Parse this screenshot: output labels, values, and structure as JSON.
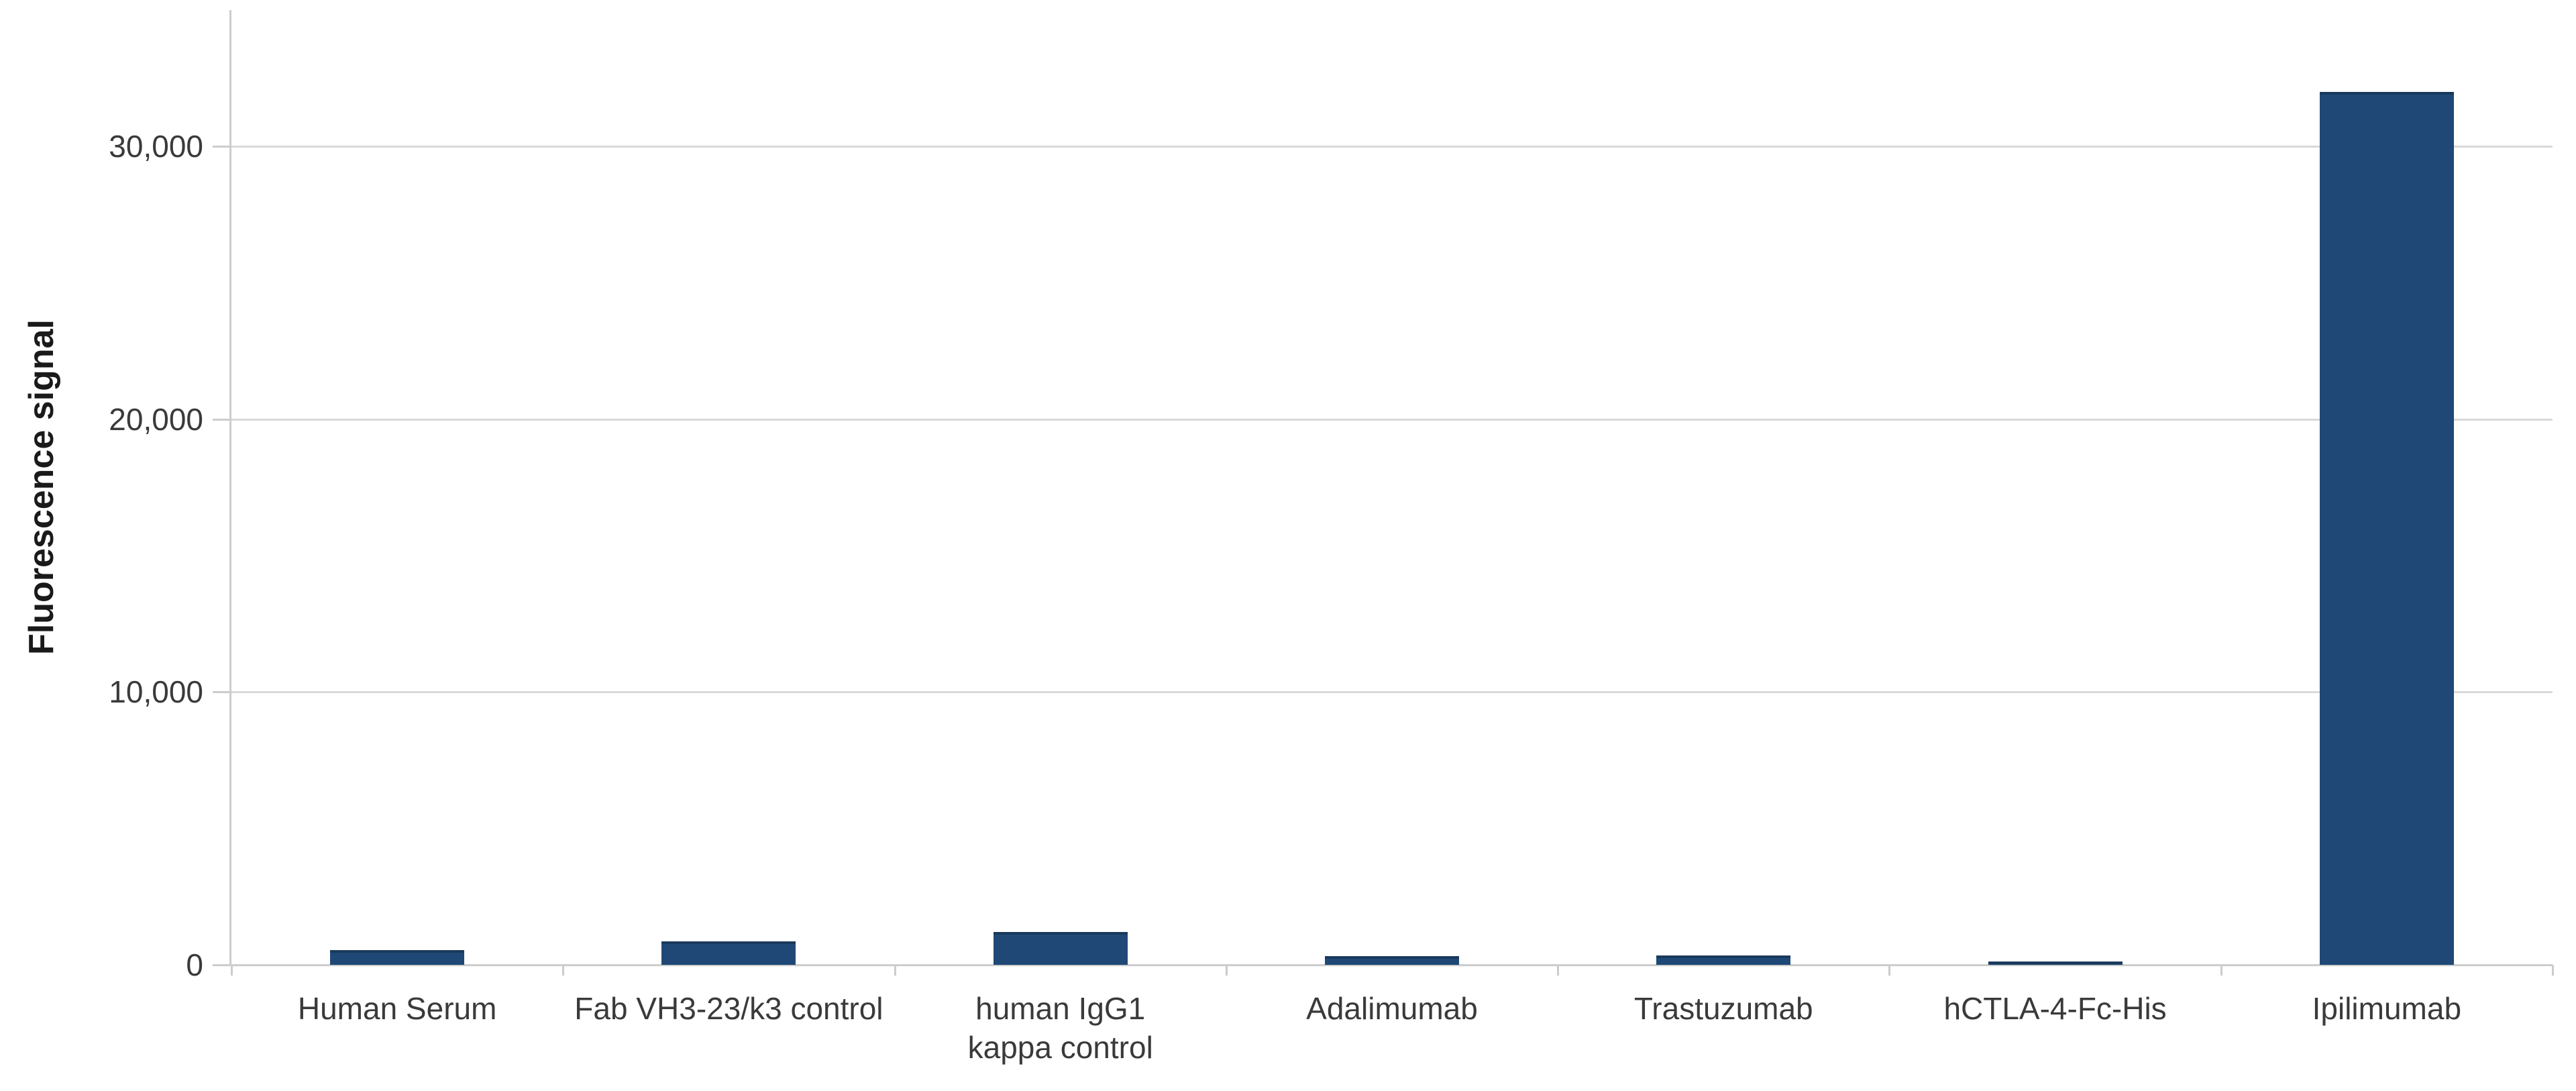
{
  "chart_data": {
    "type": "bar",
    "title": "",
    "xlabel": "",
    "ylabel": "Fluorescence signal",
    "categories": [
      "Human Serum",
      "Fab VH3-23/k3 control",
      "human IgG1\nkappa control",
      "Adalimumab",
      "Trastuzumab",
      "hCTLA-4-Fc-His",
      "Ipilimumab"
    ],
    "values": [
      550,
      850,
      1200,
      320,
      350,
      120,
      32000
    ],
    "series_name": "Fluorescence signal",
    "ylim": [
      0,
      35000
    ],
    "yticks": [
      {
        "value": 0,
        "label": "0"
      },
      {
        "value": 10000,
        "label": "10,000"
      },
      {
        "value": 20000,
        "label": "20,000"
      },
      {
        "value": 30000,
        "label": "30,000"
      }
    ],
    "grid": "horizontal-major",
    "legend_position": "none",
    "colors": {
      "bar_fill": "#1f4876",
      "bar_top_edge": "#1a3a5c",
      "gridline": "#d9d9d9",
      "axis_line": "#cccccc",
      "tick_label": "#3a3a3a",
      "axis_title": "#1a1a1a",
      "background": "#ffffff"
    }
  }
}
